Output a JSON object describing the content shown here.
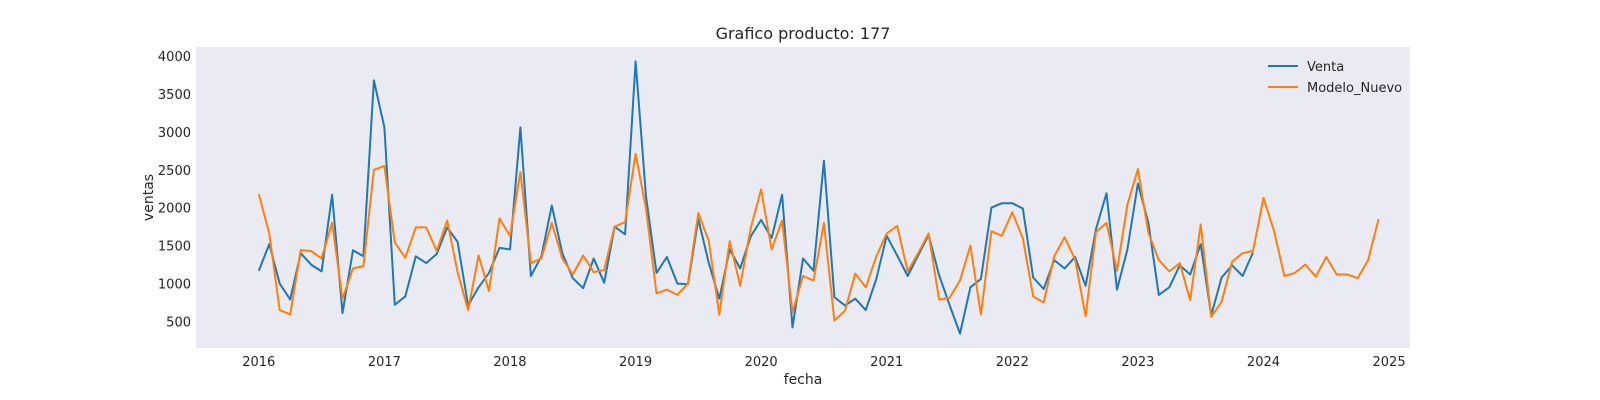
{
  "chart_data": {
    "type": "line",
    "title": "Grafico producto: 177",
    "xlabel": "fecha",
    "ylabel": "ventas",
    "x_ticks": [
      "2016",
      "2017",
      "2018",
      "2019",
      "2020",
      "2021",
      "2022",
      "2023",
      "2024",
      "2025"
    ],
    "y_ticks": [
      500,
      1000,
      1500,
      2000,
      2500,
      3000,
      3500,
      4000
    ],
    "xlim": [
      "2015-07",
      "2025-03"
    ],
    "ylim": [
      150,
      4120
    ],
    "grid": false,
    "legend_position": "top-right",
    "series": [
      {
        "name": "Venta",
        "color": "#1f77b4",
        "x": [
          "2016-01",
          "2016-02",
          "2016-03",
          "2016-04",
          "2016-05",
          "2016-06",
          "2016-07",
          "2016-08",
          "2016-09",
          "2016-10",
          "2016-11",
          "2016-12",
          "2017-01",
          "2017-02",
          "2017-03",
          "2017-04",
          "2017-05",
          "2017-06",
          "2017-07",
          "2017-08",
          "2017-09",
          "2017-10",
          "2017-11",
          "2017-12",
          "2018-01",
          "2018-02",
          "2018-03",
          "2018-04",
          "2018-05",
          "2018-06",
          "2018-07",
          "2018-08",
          "2018-09",
          "2018-10",
          "2018-11",
          "2018-12",
          "2019-01",
          "2019-02",
          "2019-03",
          "2019-04",
          "2019-05",
          "2019-06",
          "2019-07",
          "2019-08",
          "2019-09",
          "2019-10",
          "2019-11",
          "2019-12",
          "2020-01",
          "2020-02",
          "2020-03",
          "2020-04",
          "2020-05",
          "2020-06",
          "2020-07",
          "2020-08",
          "2020-09",
          "2020-10",
          "2020-11",
          "2020-12",
          "2021-01",
          "2021-02",
          "2021-03",
          "2021-04",
          "2021-05",
          "2021-06",
          "2021-07",
          "2021-08",
          "2021-09",
          "2021-10",
          "2021-11",
          "2021-12",
          "2022-01",
          "2022-02",
          "2022-03",
          "2022-04",
          "2022-05",
          "2022-06",
          "2022-07",
          "2022-08",
          "2022-09",
          "2022-10",
          "2022-11",
          "2022-12",
          "2023-01",
          "2023-02",
          "2023-03",
          "2023-04",
          "2023-05",
          "2023-06",
          "2023-07",
          "2023-08",
          "2023-09",
          "2023-10",
          "2023-11",
          "2023-12"
        ],
        "values": [
          1170,
          1520,
          1000,
          790,
          1400,
          1250,
          1160,
          2170,
          610,
          1440,
          1360,
          3680,
          3060,
          720,
          830,
          1360,
          1270,
          1390,
          1740,
          1550,
          710,
          950,
          1140,
          1470,
          1450,
          3060,
          1100,
          1360,
          2030,
          1400,
          1070,
          940,
          1330,
          1010,
          1750,
          1650,
          3930,
          2150,
          1140,
          1350,
          1000,
          990,
          1850,
          1270,
          800,
          1450,
          1200,
          1620,
          1840,
          1600,
          2170,
          420,
          1330,
          1170,
          2620,
          820,
          710,
          800,
          650,
          1060,
          1630,
          1370,
          1100,
          1370,
          1640,
          1110,
          720,
          340,
          950,
          1060,
          2000,
          2060,
          2060,
          1990,
          1080,
          930,
          1310,
          1200,
          1350,
          970,
          1720,
          2190,
          920,
          1450,
          2320,
          1800,
          850,
          950,
          1240,
          1120,
          1520,
          580,
          1080,
          1240,
          1100,
          1410
        ]
      },
      {
        "name": "Modelo_Nuevo",
        "color": "#ff7f0e",
        "x": [
          "2016-01",
          "2016-02",
          "2016-03",
          "2016-04",
          "2016-05",
          "2016-06",
          "2016-07",
          "2016-08",
          "2016-09",
          "2016-10",
          "2016-11",
          "2016-12",
          "2017-01",
          "2017-02",
          "2017-03",
          "2017-04",
          "2017-05",
          "2017-06",
          "2017-07",
          "2017-08",
          "2017-09",
          "2017-10",
          "2017-11",
          "2017-12",
          "2018-01",
          "2018-02",
          "2018-03",
          "2018-04",
          "2018-05",
          "2018-06",
          "2018-07",
          "2018-08",
          "2018-09",
          "2018-10",
          "2018-11",
          "2018-12",
          "2019-01",
          "2019-02",
          "2019-03",
          "2019-04",
          "2019-05",
          "2019-06",
          "2019-07",
          "2019-08",
          "2019-09",
          "2019-10",
          "2019-11",
          "2019-12",
          "2020-01",
          "2020-02",
          "2020-03",
          "2020-04",
          "2020-05",
          "2020-06",
          "2020-07",
          "2020-08",
          "2020-09",
          "2020-10",
          "2020-11",
          "2020-12",
          "2021-01",
          "2021-02",
          "2021-03",
          "2021-04",
          "2021-05",
          "2021-06",
          "2021-07",
          "2021-08",
          "2021-09",
          "2021-10",
          "2021-11",
          "2021-12",
          "2022-01",
          "2022-02",
          "2022-03",
          "2022-04",
          "2022-05",
          "2022-06",
          "2022-07",
          "2022-08",
          "2022-09",
          "2022-10",
          "2022-11",
          "2022-12",
          "2023-01",
          "2023-02",
          "2023-03",
          "2023-04",
          "2023-05",
          "2023-06",
          "2023-07",
          "2023-08",
          "2023-09",
          "2023-10",
          "2023-11",
          "2023-12",
          "2024-01",
          "2024-02",
          "2024-03",
          "2024-04",
          "2024-05",
          "2024-06",
          "2024-07",
          "2024-08",
          "2024-09",
          "2024-10",
          "2024-11",
          "2024-12"
        ],
        "values": [
          2180,
          1660,
          650,
          590,
          1440,
          1430,
          1330,
          1800,
          800,
          1200,
          1230,
          2500,
          2550,
          1540,
          1340,
          1740,
          1740,
          1430,
          1830,
          1150,
          650,
          1370,
          900,
          1860,
          1630,
          2470,
          1270,
          1330,
          1800,
          1330,
          1120,
          1370,
          1150,
          1180,
          1750,
          1810,
          2710,
          1990,
          870,
          920,
          850,
          1000,
          1930,
          1560,
          590,
          1560,
          970,
          1730,
          2240,
          1450,
          1830,
          620,
          1100,
          1040,
          1800,
          510,
          640,
          1130,
          950,
          1360,
          1660,
          1760,
          1160,
          1400,
          1660,
          790,
          810,
          1040,
          1500,
          590,
          1690,
          1630,
          1940,
          1600,
          830,
          750,
          1360,
          1610,
          1320,
          570,
          1680,
          1800,
          1170,
          2040,
          2510,
          1670,
          1310,
          1160,
          1270,
          780,
          1780,
          560,
          760,
          1290,
          1400,
          1430,
          2130,
          1700,
          1100,
          1140,
          1250,
          1090,
          1350,
          1120,
          1120,
          1070,
          1310,
          1850
        ]
      }
    ]
  }
}
